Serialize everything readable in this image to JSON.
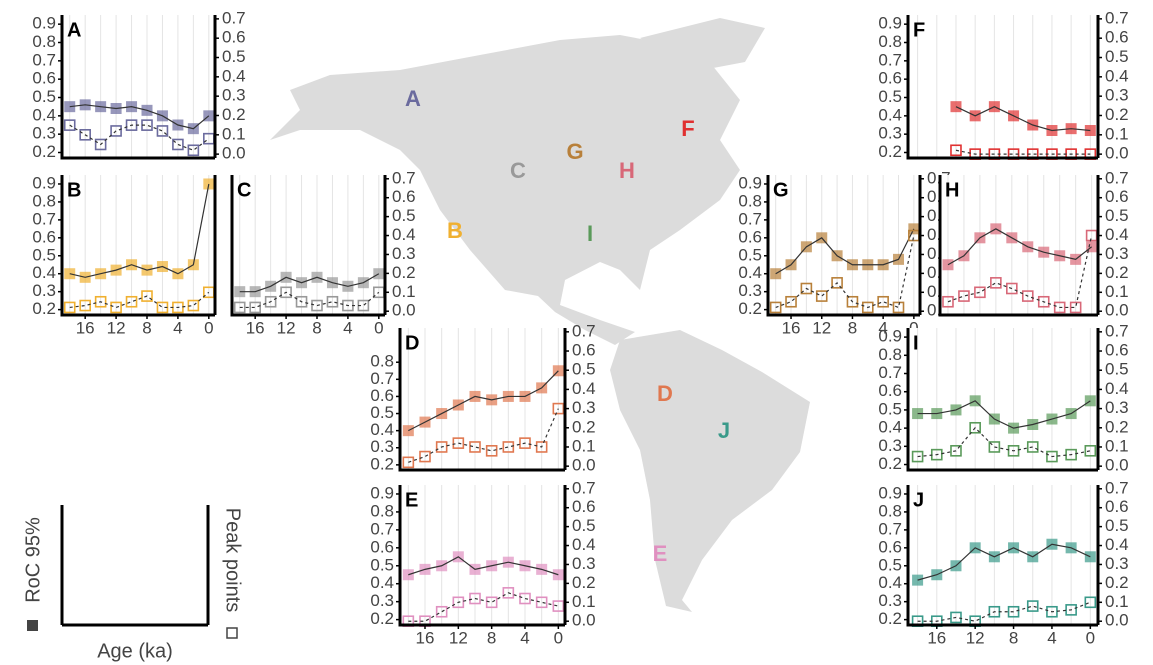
{
  "chart_data": [
    {
      "type": "line",
      "title": "A",
      "x": [
        18,
        16,
        14,
        12,
        10,
        8,
        6,
        4,
        2,
        0
      ],
      "xlim": [
        19,
        -0.8
      ],
      "ylim": [
        0.17,
        0.95
      ],
      "y2lim": [
        -0.02,
        0.72
      ],
      "yticks": [
        0.2,
        0.3,
        0.4,
        0.5,
        0.6,
        0.7,
        0.8,
        0.9
      ],
      "y2ticks": [
        {
          "value": 0,
          "label": "0.0"
        },
        0.1,
        0.2,
        0.3,
        0.4,
        0.5,
        0.6,
        0.7
      ],
      "series": [
        {
          "color": "#6b6b9e",
          "values": [
            0.45,
            0.46,
            0.45,
            0.44,
            0.45,
            0.43,
            0.4,
            0.35,
            0.33,
            0.4
          ]
        },
        {
          "color": "#6b6b9e",
          "axis": "y2",
          "values": [
            0.15,
            0.1,
            0.05,
            0.12,
            0.15,
            0.15,
            0.12,
            0.05,
            0.02,
            0.08
          ]
        }
      ]
    },
    {
      "type": "line",
      "title": "B",
      "x": [
        18,
        16,
        14,
        12,
        10,
        8,
        6,
        4,
        2,
        0
      ],
      "xlim": [
        19,
        -0.8
      ],
      "ylim": [
        0.17,
        0.95
      ],
      "y2lim": [
        -0.02,
        0.72
      ],
      "yticks": [
        0.2,
        0.3,
        0.4,
        0.5,
        0.6,
        0.7,
        0.8,
        0.9
      ],
      "xticks": [
        16,
        12,
        8,
        4,
        0
      ],
      "series": [
        {
          "color": "#f0b030",
          "values": [
            0.4,
            0.38,
            0.4,
            0.42,
            0.45,
            0.42,
            0.44,
            0.4,
            0.45,
            0.9
          ]
        },
        {
          "color": "#f0b030",
          "axis": "y2",
          "values": [
            0.02,
            0.03,
            0.05,
            0.02,
            0.05,
            0.08,
            0.02,
            0.02,
            0.03,
            0.1
          ]
        }
      ]
    },
    {
      "type": "line",
      "title": "C",
      "x": [
        18,
        16,
        14,
        12,
        10,
        8,
        6,
        4,
        2,
        0
      ],
      "xlim": [
        19,
        -0.8
      ],
      "ylim": [
        0.17,
        0.95
      ],
      "y2lim": [
        -0.02,
        0.72
      ],
      "y2ticks": [
        {
          "value": 0,
          "label": "0.0"
        },
        0.1,
        0.2,
        0.3,
        0.4,
        0.5,
        0.6,
        0.7
      ],
      "xticks": [
        16,
        12,
        8,
        4,
        0
      ],
      "series": [
        {
          "color": "#999999",
          "values": [
            0.3,
            0.3,
            0.33,
            0.38,
            0.35,
            0.38,
            0.35,
            0.33,
            0.35,
            0.4
          ]
        },
        {
          "color": "#999999",
          "axis": "y2",
          "values": [
            0.02,
            0.02,
            0.05,
            0.1,
            0.05,
            0.03,
            0.05,
            0.03,
            0.03,
            0.1
          ]
        }
      ]
    },
    {
      "type": "line",
      "title": "D",
      "x": [
        18,
        16,
        14,
        12,
        10,
        8,
        6,
        4,
        2,
        0
      ],
      "xlim": [
        19,
        -0.8
      ],
      "ylim": [
        0.17,
        1.0
      ],
      "y2lim": [
        -0.02,
        0.72
      ],
      "yticks": [
        0.2,
        0.3,
        0.4,
        0.5,
        0.6,
        0.7,
        0.8
      ],
      "y2ticks": [
        {
          "value": 0,
          "label": "0.0"
        },
        0.1,
        0.2,
        0.3,
        0.4,
        0.5,
        0.6,
        0.7
      ],
      "series": [
        {
          "color": "#e07850",
          "values": [
            0.4,
            0.45,
            0.5,
            0.55,
            0.6,
            0.58,
            0.6,
            0.6,
            0.65,
            0.75
          ]
        },
        {
          "color": "#e07850",
          "axis": "y2",
          "values": [
            0.02,
            0.05,
            0.1,
            0.12,
            0.1,
            0.08,
            0.1,
            0.12,
            0.1,
            0.3
          ]
        }
      ]
    },
    {
      "type": "line",
      "title": "E",
      "x": [
        18,
        16,
        14,
        12,
        10,
        8,
        6,
        4,
        2,
        0
      ],
      "xlim": [
        19,
        -0.8
      ],
      "ylim": [
        0.17,
        0.95
      ],
      "y2lim": [
        -0.02,
        0.72
      ],
      "yticks": [
        0.2,
        0.3,
        0.4,
        0.5,
        0.6,
        0.7,
        0.8,
        0.9
      ],
      "xticks": [
        16,
        12,
        8,
        4,
        0
      ],
      "y2ticks": [
        {
          "value": 0,
          "label": "0.0"
        },
        0.1,
        0.2,
        0.3,
        0.4,
        0.5,
        0.6,
        0.7
      ],
      "series": [
        {
          "color": "#e090c0",
          "values": [
            0.45,
            0.48,
            0.5,
            0.55,
            0.48,
            0.5,
            0.52,
            0.5,
            0.48,
            0.45
          ]
        },
        {
          "color": "#e090c0",
          "axis": "y2",
          "values": [
            0.0,
            0.0,
            0.05,
            0.1,
            0.12,
            0.1,
            0.15,
            0.12,
            0.1,
            0.08
          ]
        }
      ]
    },
    {
      "type": "line",
      "title": "F",
      "x": [
        18,
        16,
        14,
        12,
        10,
        8,
        6,
        4,
        2,
        0
      ],
      "xlim": [
        19,
        -0.8
      ],
      "ylim": [
        0.17,
        0.95
      ],
      "y2lim": [
        -0.02,
        0.72
      ],
      "yticks": [
        0.2,
        0.3,
        0.4,
        0.5,
        0.6,
        0.7,
        0.8,
        0.9
      ],
      "y2ticks": [
        {
          "value": 0,
          "label": "0.0"
        },
        0.1,
        0.2,
        0.3,
        0.4,
        0.5,
        0.6,
        0.7
      ],
      "series": [
        {
          "color": "#e03030",
          "values": [
            null,
            null,
            0.45,
            0.4,
            0.45,
            0.4,
            0.35,
            0.32,
            0.33,
            0.32
          ]
        },
        {
          "color": "#e03030",
          "axis": "y2",
          "values": [
            null,
            null,
            0.02,
            0.0,
            0.0,
            0.0,
            0.0,
            0.0,
            0.0,
            0.0
          ]
        }
      ]
    },
    {
      "type": "line",
      "title": "G",
      "x": [
        18,
        16,
        14,
        12,
        10,
        8,
        6,
        4,
        2,
        0
      ],
      "xlim": [
        19,
        -0.8
      ],
      "ylim": [
        0.17,
        0.95
      ],
      "y2lim": [
        -0.02,
        0.72
      ],
      "yticks": [
        0.2,
        0.3,
        0.4,
        0.5,
        0.6,
        0.7,
        0.8,
        0.9
      ],
      "xticks": [
        16,
        12,
        8,
        4,
        0
      ],
      "y2ticks": [
        {
          "value": 0,
          "label": "0.0"
        },
        0.1,
        0.2,
        0.3,
        0.4,
        0.5,
        0.6,
        0.7
      ],
      "series": [
        {
          "color": "#b8803a",
          "values": [
            0.4,
            0.45,
            0.55,
            0.6,
            0.5,
            0.45,
            0.45,
            0.45,
            0.48,
            0.65
          ]
        },
        {
          "color": "#b8803a",
          "axis": "y2",
          "values": [
            0.02,
            0.05,
            0.12,
            0.08,
            0.15,
            0.05,
            0.02,
            0.05,
            0.02,
            0.4
          ]
        }
      ]
    },
    {
      "type": "line",
      "title": "H",
      "x": [
        18,
        16,
        14,
        12,
        10,
        8,
        6,
        4,
        2,
        0
      ],
      "xlim": [
        19,
        -0.8
      ],
      "ylim": [
        0.17,
        0.95
      ],
      "y2lim": [
        -0.02,
        0.72
      ],
      "y2ticks": [
        {
          "value": 0,
          "label": "0.0"
        },
        0.1,
        0.2,
        0.3,
        0.4,
        0.5,
        0.6,
        0.7
      ],
      "series": [
        {
          "color": "#d86878",
          "values": [
            0.45,
            0.5,
            0.6,
            0.65,
            0.6,
            0.55,
            0.52,
            0.5,
            0.48,
            0.55
          ]
        },
        {
          "color": "#d86878",
          "axis": "y2",
          "values": [
            0.05,
            0.08,
            0.1,
            0.15,
            0.12,
            0.08,
            0.05,
            0.02,
            0.02,
            0.4
          ]
        }
      ]
    },
    {
      "type": "line",
      "title": "I",
      "x": [
        18,
        16,
        14,
        12,
        10,
        8,
        6,
        4,
        2,
        0
      ],
      "xlim": [
        19,
        -0.8
      ],
      "ylim": [
        0.17,
        0.95
      ],
      "y2lim": [
        -0.02,
        0.72
      ],
      "yticks": [
        0.2,
        0.3,
        0.4,
        0.5,
        0.6,
        0.7,
        0.8,
        0.9
      ],
      "y2ticks": [
        {
          "value": 0,
          "label": "0.0"
        },
        0.1,
        0.2,
        0.3,
        0.4,
        0.5,
        0.6,
        0.7
      ],
      "series": [
        {
          "color": "#5a9a5a",
          "values": [
            0.48,
            0.48,
            0.5,
            0.55,
            0.45,
            0.4,
            0.42,
            0.45,
            0.48,
            0.55
          ]
        },
        {
          "color": "#5a9a5a",
          "axis": "y2",
          "values": [
            0.05,
            0.06,
            0.08,
            0.2,
            0.1,
            0.08,
            0.1,
            0.05,
            0.06,
            0.08
          ]
        }
      ]
    },
    {
      "type": "line",
      "title": "J",
      "x": [
        18,
        16,
        14,
        12,
        10,
        8,
        6,
        4,
        2,
        0
      ],
      "xlim": [
        19,
        -0.8
      ],
      "ylim": [
        0.17,
        0.95
      ],
      "y2lim": [
        -0.02,
        0.72
      ],
      "yticks": [
        0.2,
        0.3,
        0.4,
        0.5,
        0.6,
        0.7,
        0.8,
        0.9
      ],
      "xticks": [
        16,
        12,
        8,
        4,
        0
      ],
      "y2ticks": [
        {
          "value": 0,
          "label": "0.0"
        },
        0.1,
        0.2,
        0.3,
        0.4,
        0.5,
        0.6,
        0.7
      ],
      "series": [
        {
          "color": "#3a9a8a",
          "values": [
            0.42,
            0.45,
            0.5,
            0.6,
            0.55,
            0.6,
            0.55,
            0.62,
            0.6,
            0.55
          ]
        },
        {
          "color": "#3a9a8a",
          "axis": "y2",
          "values": [
            0.0,
            0.0,
            0.02,
            0.0,
            0.05,
            0.05,
            0.08,
            0.05,
            0.06,
            0.1
          ]
        }
      ]
    }
  ],
  "legend": {
    "series_names": [
      "RoC 95%",
      "Peak points"
    ],
    "xlabel": "Age (ka)"
  },
  "map_labels": [
    "A",
    "B",
    "C",
    "D",
    "E",
    "F",
    "G",
    "H",
    "I",
    "J"
  ]
}
